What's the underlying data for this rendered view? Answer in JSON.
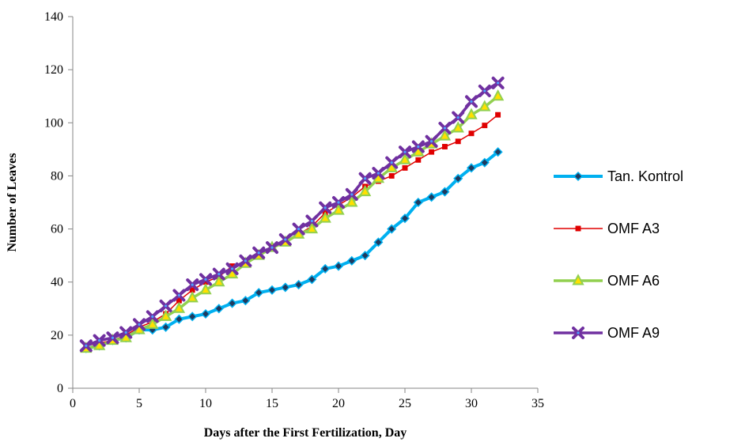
{
  "chart_data": {
    "type": "line",
    "xlabel": "Days after the First Fertilization, Day",
    "ylabel": "Number of Leaves",
    "xlim": [
      0,
      35
    ],
    "ylim": [
      0,
      140
    ],
    "xticks": [
      0,
      5,
      10,
      15,
      20,
      25,
      30,
      35
    ],
    "yticks": [
      0,
      20,
      40,
      60,
      80,
      100,
      120,
      140
    ],
    "grid": false,
    "legend_position": "right",
    "x": [
      1,
      2,
      3,
      4,
      5,
      6,
      7,
      8,
      9,
      10,
      11,
      12,
      13,
      14,
      15,
      16,
      17,
      18,
      19,
      20,
      21,
      22,
      23,
      24,
      25,
      26,
      27,
      28,
      29,
      30,
      31,
      32
    ],
    "series": [
      {
        "name": "Tan. Kontrol",
        "color": "#00B0F0",
        "marker": "diamond",
        "values": [
          15,
          16,
          18,
          19,
          22,
          22,
          23,
          26,
          27,
          28,
          30,
          32,
          33,
          36,
          37,
          38,
          39,
          41,
          45,
          46,
          48,
          50,
          55,
          60,
          64,
          70,
          72,
          74,
          79,
          83,
          85,
          89
        ]
      },
      {
        "name": "OMF A3",
        "color": "#E00000",
        "marker": "square",
        "values": [
          16,
          17,
          18,
          20,
          23,
          25,
          28,
          33,
          37,
          40,
          42,
          46,
          47,
          50,
          53,
          55,
          58,
          61,
          66,
          69,
          72,
          76,
          78,
          80,
          83,
          86,
          89,
          91,
          93,
          96,
          99,
          103
        ]
      },
      {
        "name": "OMF A6",
        "color": "#92D050",
        "marker": "triangle",
        "values": [
          15,
          16,
          18,
          19,
          22,
          24,
          27,
          30,
          34,
          37,
          40,
          43,
          47,
          50,
          53,
          55,
          58,
          60,
          64,
          67,
          70,
          74,
          79,
          83,
          86,
          89,
          92,
          95,
          98,
          103,
          106,
          110
        ]
      },
      {
        "name": "OMF A9",
        "color": "#7030A0",
        "marker": "x",
        "values": [
          16,
          18,
          19,
          21,
          24,
          27,
          31,
          35,
          39,
          41,
          43,
          45,
          48,
          51,
          53,
          56,
          60,
          63,
          68,
          70,
          73,
          79,
          81,
          85,
          89,
          91,
          93,
          98,
          102,
          108,
          112,
          115
        ]
      }
    ]
  }
}
